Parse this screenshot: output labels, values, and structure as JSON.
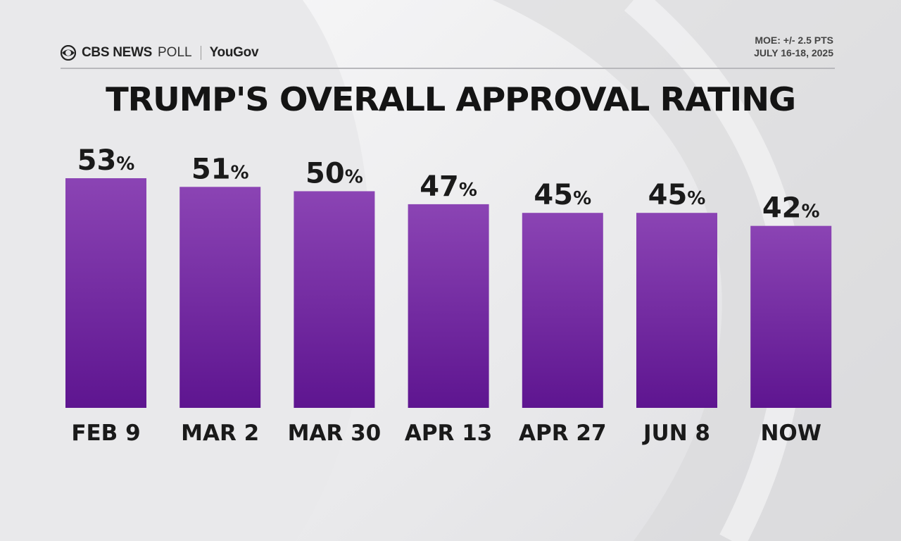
{
  "header": {
    "brand": "CBS NEWS",
    "brand_suffix": "POLL",
    "partner": "YouGov",
    "moe": "MOE: +/- 2.5 PTS",
    "dates": "JULY 16-18, 2025"
  },
  "colors": {
    "bar_top": "#8b44b4",
    "bar_bottom": "#5e1590",
    "text": "#1a1a1a"
  },
  "icons": {
    "logo": "cbs-eye-icon"
  },
  "chart_data": {
    "type": "bar",
    "title": "TRUMP'S OVERALL APPROVAL RATING",
    "categories": [
      "FEB 9",
      "MAR 2",
      "MAR 30",
      "APR 13",
      "APR 27",
      "JUN 8",
      "NOW"
    ],
    "values": [
      53,
      51,
      50,
      47,
      45,
      45,
      42
    ],
    "value_suffix": "%",
    "xlabel": "",
    "ylabel": "",
    "ylim": [
      0,
      53
    ],
    "grid": false,
    "legend": "none"
  }
}
